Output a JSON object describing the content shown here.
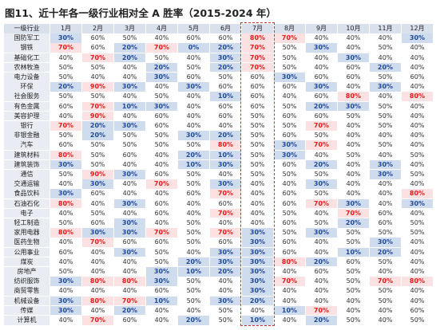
{
  "title": "图11、近十年各一级行业相对全 A 胜率（2015-2024 年）",
  "table": {
    "header": [
      "一级行业",
      "1月",
      "2月",
      "3月",
      "4月",
      "5月",
      "6月",
      "7月",
      "8月",
      "9月",
      "10月",
      "11月",
      "12月"
    ],
    "rows": [
      [
        "国防军工",
        "30%",
        "60%",
        "50%",
        "40%",
        "60%",
        "60%",
        "80%",
        "70%",
        "40%",
        "40%",
        "40%",
        "30%"
      ],
      [
        "钢铁",
        "70%",
        "60%",
        "20%",
        "70%",
        "0%",
        "20%",
        "70%",
        "50%",
        "30%",
        "40%",
        "50%",
        "40%"
      ],
      [
        "基础化工",
        "40%",
        "70%",
        "20%",
        "50%",
        "40%",
        "30%",
        "70%",
        "50%",
        "40%",
        "30%",
        "40%",
        "40%"
      ],
      [
        "农林牧渔",
        "50%",
        "50%",
        "40%",
        "20%",
        "50%",
        "20%",
        "70%",
        "50%",
        "40%",
        "60%",
        "20%",
        "40%"
      ],
      [
        "电力设备",
        "50%",
        "40%",
        "40%",
        "30%",
        "60%",
        "50%",
        "60%",
        "30%",
        "60%",
        "60%",
        "50%",
        "60%"
      ],
      [
        "环保",
        "20%",
        "90%",
        "30%",
        "40%",
        "30%",
        "60%",
        "60%",
        "60%",
        "30%",
        "40%",
        "30%",
        "40%"
      ],
      [
        "社会服务",
        "50%",
        "50%",
        "40%",
        "50%",
        "40%",
        "10%",
        "60%",
        "40%",
        "60%",
        "80%",
        "40%",
        "80%"
      ],
      [
        "有色金属",
        "60%",
        "70%",
        "10%",
        "30%",
        "40%",
        "60%",
        "60%",
        "50%",
        "20%",
        "30%",
        "50%",
        "40%"
      ],
      [
        "美容护理",
        "40%",
        "90%",
        "40%",
        "60%",
        "40%",
        "60%",
        "50%",
        "60%",
        "60%",
        "50%",
        "50%",
        "40%"
      ],
      [
        "银行",
        "70%",
        "20%",
        "30%",
        "60%",
        "40%",
        "40%",
        "50%",
        "50%",
        "70%",
        "40%",
        "50%",
        "40%"
      ],
      [
        "非银金融",
        "50%",
        "20%",
        "50%",
        "50%",
        "30%",
        "20%",
        "50%",
        "60%",
        "50%",
        "40%",
        "40%",
        "40%"
      ],
      [
        "汽车",
        "60%",
        "50%",
        "50%",
        "50%",
        "50%",
        "80%",
        "50%",
        "30%",
        "70%",
        "40%",
        "50%",
        "40%"
      ],
      [
        "建筑材料",
        "80%",
        "50%",
        "60%",
        "40%",
        "20%",
        "10%",
        "50%",
        "30%",
        "40%",
        "50%",
        "40%",
        "50%"
      ],
      [
        "建筑装饰",
        "30%",
        "50%",
        "40%",
        "40%",
        "10%",
        "30%",
        "50%",
        "60%",
        "20%",
        "40%",
        "30%",
        "40%"
      ],
      [
        "通信",
        "50%",
        "90%",
        "30%",
        "60%",
        "50%",
        "40%",
        "50%",
        "50%",
        "50%",
        "40%",
        "30%",
        "50%"
      ],
      [
        "交通运输",
        "40%",
        "30%",
        "40%",
        "70%",
        "50%",
        "30%",
        "40%",
        "40%",
        "30%",
        "40%",
        "40%",
        "40%"
      ],
      [
        "食品饮料",
        "30%",
        "60%",
        "40%",
        "40%",
        "60%",
        "70%",
        "40%",
        "60%",
        "50%",
        "40%",
        "40%",
        "80%"
      ],
      [
        "石油石化",
        "80%",
        "40%",
        "30%",
        "60%",
        "40%",
        "60%",
        "40%",
        "60%",
        "70%",
        "30%",
        "40%",
        "30%"
      ],
      [
        "电子",
        "40%",
        "50%",
        "40%",
        "60%",
        "40%",
        "70%",
        "40%",
        "50%",
        "40%",
        "70%",
        "60%",
        "40%"
      ],
      [
        "轻工制造",
        "50%",
        "60%",
        "30%",
        "40%",
        "50%",
        "40%",
        "40%",
        "60%",
        "50%",
        "20%",
        "60%",
        "50%"
      ],
      [
        "家用电器",
        "80%",
        "30%",
        "30%",
        "70%",
        "50%",
        "70%",
        "30%",
        "50%",
        "30%",
        "50%",
        "50%",
        "50%"
      ],
      [
        "医药生物",
        "40%",
        "70%",
        "60%",
        "60%",
        "50%",
        "60%",
        "30%",
        "60%",
        "40%",
        "50%",
        "30%",
        "40%"
      ],
      [
        "公用事业",
        "60%",
        "40%",
        "30%",
        "50%",
        "40%",
        "30%",
        "30%",
        "60%",
        "40%",
        "10%",
        "20%",
        "40%"
      ],
      [
        "煤炭",
        "40%",
        "40%",
        "40%",
        "50%",
        "20%",
        "30%",
        "30%",
        "80%",
        "20%",
        "60%",
        "50%",
        "40%"
      ],
      [
        "房地产",
        "50%",
        "40%",
        "40%",
        "30%",
        "10%",
        "20%",
        "30%",
        "40%",
        "60%",
        "50%",
        "40%",
        "40%"
      ],
      [
        "纺织服饰",
        "30%",
        "80%",
        "80%",
        "30%",
        "50%",
        "40%",
        "30%",
        "70%",
        "40%",
        "50%",
        "70%",
        "80%"
      ],
      [
        "商贸零售",
        "40%",
        "40%",
        "40%",
        "60%",
        "50%",
        "40%",
        "30%",
        "40%",
        "40%",
        "50%",
        "50%",
        "40%"
      ],
      [
        "机械设备",
        "30%",
        "80%",
        "70%",
        "10%",
        "50%",
        "30%",
        "20%",
        "40%",
        "40%",
        "40%",
        "50%",
        "40%"
      ],
      [
        "传媒",
        "30%",
        "40%",
        "20%",
        "40%",
        "40%",
        "50%",
        "40%",
        "10%",
        "70%",
        "40%",
        "40%",
        "60%"
      ],
      [
        "计算机",
        "40%",
        "70%",
        "60%",
        "40%",
        "20%",
        "50%",
        "10%",
        "40%",
        "20%",
        "50%",
        "40%",
        "50%"
      ]
    ]
  }
}
